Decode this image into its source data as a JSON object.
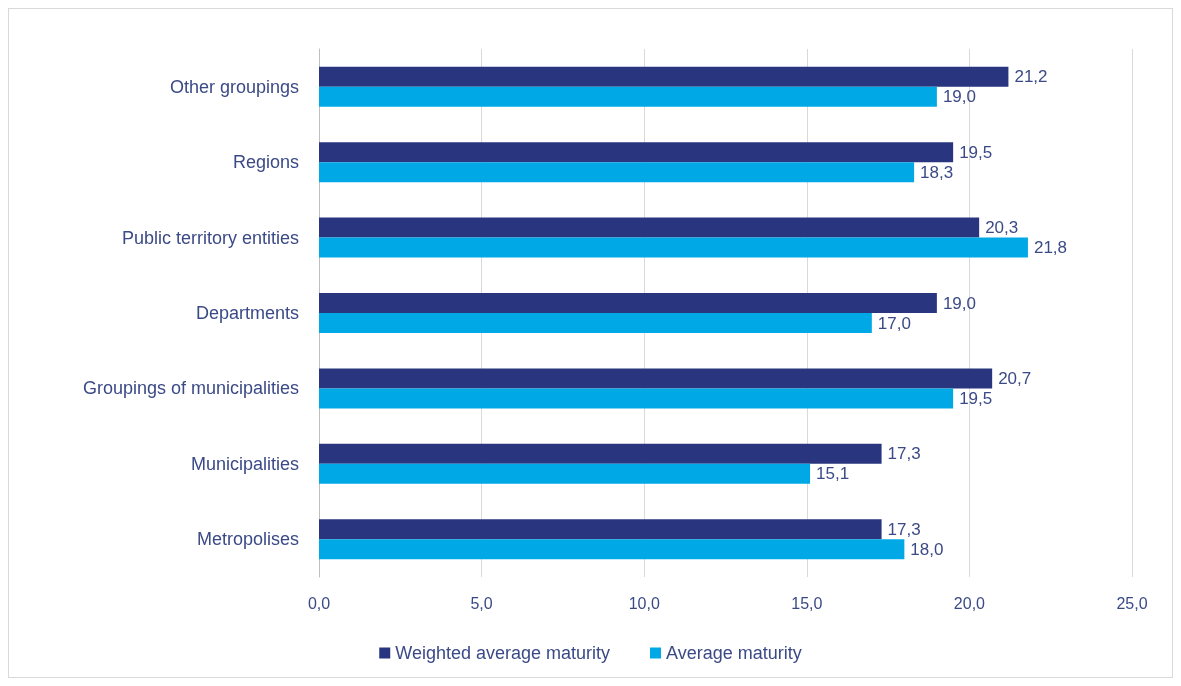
{
  "chart_data": {
    "type": "bar",
    "orientation": "horizontal",
    "categories": [
      "Other groupings",
      "Regions",
      "Public territory entities",
      "Departments",
      "Groupings of municipalities",
      "Municipalities",
      "Metropolises"
    ],
    "series": [
      {
        "name": "Weighted average maturity",
        "color": "#29367f",
        "values": [
          21.2,
          19.5,
          20.3,
          19.0,
          20.7,
          17.3,
          17.3
        ],
        "value_labels": [
          "21,2",
          "19,5",
          "20,3",
          "19,0",
          "20,7",
          "17,3",
          "17,3"
        ]
      },
      {
        "name": "Average maturity",
        "color": "#00a9e6",
        "values": [
          19.0,
          18.3,
          21.8,
          17.0,
          19.5,
          15.1,
          18.0
        ],
        "value_labels": [
          "19,0",
          "18,3",
          "21,8",
          "17,0",
          "19,5",
          "15,1",
          "18,0"
        ]
      }
    ],
    "xlim": [
      0,
      25
    ],
    "xticks": [
      {
        "value": 0,
        "label": "0,0"
      },
      {
        "value": 5,
        "label": "5,0"
      },
      {
        "value": 10,
        "label": "10,0"
      },
      {
        "value": 15,
        "label": "15,0"
      },
      {
        "value": 20,
        "label": "20,0"
      },
      {
        "value": 25,
        "label": "25,0"
      }
    ],
    "grid": "x",
    "legend": "bottom"
  }
}
